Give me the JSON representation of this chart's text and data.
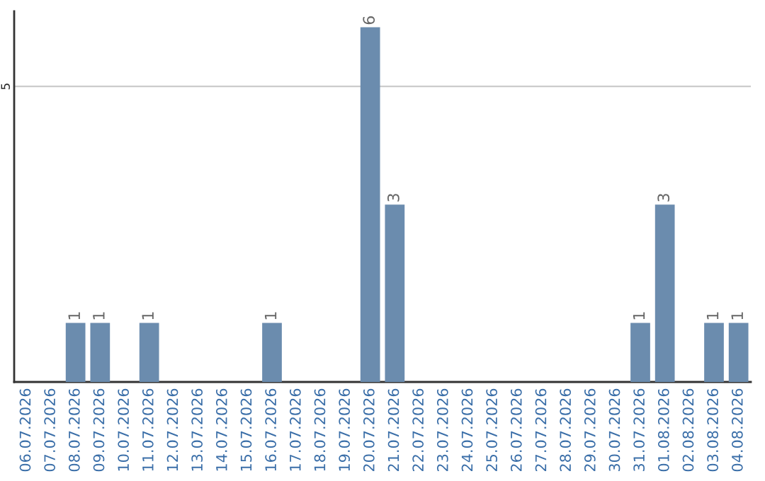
{
  "chart_data": {
    "type": "bar",
    "categories": [
      "06.07.2026",
      "07.07.2026",
      "08.07.2026",
      "09.07.2026",
      "10.07.2026",
      "11.07.2026",
      "12.07.2026",
      "13.07.2026",
      "14.07.2026",
      "15.07.2026",
      "16.07.2026",
      "17.07.2026",
      "18.07.2026",
      "19.07.2026",
      "20.07.2026",
      "21.07.2026",
      "22.07.2026",
      "23.07.2026",
      "24.07.2026",
      "25.07.2026",
      "26.07.2026",
      "27.07.2026",
      "28.07.2026",
      "29.07.2026",
      "30.07.2026",
      "31.07.2026",
      "01.08.2026",
      "02.08.2026",
      "03.08.2026",
      "04.08.2026"
    ],
    "values": [
      0,
      0,
      1,
      1,
      0,
      1,
      0,
      0,
      0,
      0,
      1,
      0,
      0,
      0,
      6,
      3,
      0,
      0,
      0,
      0,
      0,
      0,
      0,
      0,
      0,
      1,
      3,
      0,
      1,
      1
    ],
    "value_labels": [
      null,
      null,
      "1",
      "1",
      null,
      "1",
      null,
      null,
      null,
      null,
      "1",
      null,
      null,
      null,
      "6",
      "3",
      null,
      null,
      null,
      null,
      null,
      null,
      null,
      null,
      null,
      "1",
      "3",
      null,
      "1",
      "1"
    ],
    "color": "#6b8cae",
    "ylim": [
      0,
      6.27
    ],
    "yticks": [
      5
    ],
    "grid": "y"
  }
}
